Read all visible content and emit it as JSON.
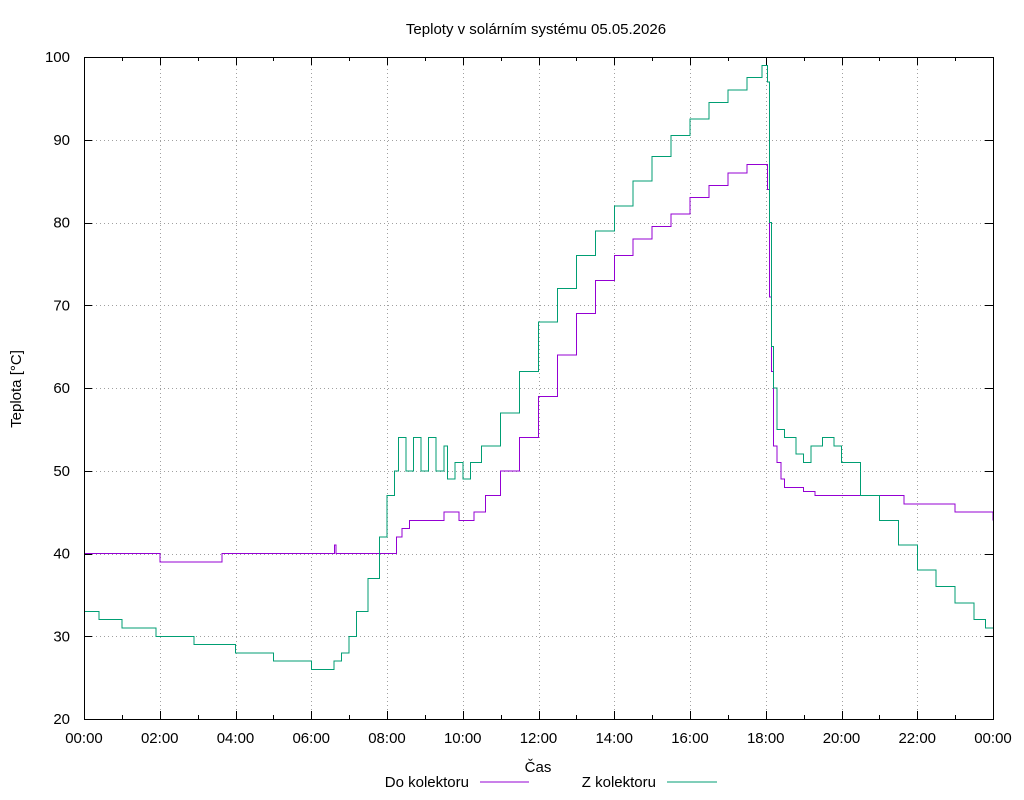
{
  "chart_data": {
    "type": "line",
    "title": "Teploty v solárním systému 05.05.2026",
    "xlabel": "Čas",
    "ylabel": "Teplota [°C]",
    "xlim": [
      0,
      24
    ],
    "ylim": [
      20,
      100
    ],
    "x_ticks": [
      "00:00",
      "02:00",
      "04:00",
      "06:00",
      "08:00",
      "10:00",
      "12:00",
      "14:00",
      "16:00",
      "18:00",
      "20:00",
      "22:00",
      "00:00"
    ],
    "y_ticks": [
      "20",
      "30",
      "40",
      "50",
      "60",
      "70",
      "80",
      "90",
      "100"
    ],
    "grid": true,
    "legend_position": "bottom",
    "series": [
      {
        "name": "Do kolektoru",
        "color": "#9400d3",
        "x": [
          0,
          1.95,
          2.0,
          2.05,
          3.6,
          3.65,
          6.6,
          6.62,
          6.65,
          8.2,
          8.25,
          8.4,
          8.6,
          9.3,
          9.5,
          9.7,
          9.9,
          10.05,
          10.3,
          10.6,
          11.0,
          11.5,
          12.0,
          12.5,
          13.0,
          13.5,
          14.0,
          14.5,
          15.0,
          15.5,
          16.0,
          16.5,
          17.0,
          17.5,
          18.0,
          18.05,
          18.1,
          18.15,
          18.2,
          18.3,
          18.4,
          18.5,
          18.7,
          19.0,
          19.3,
          20.0,
          21.0,
          21.6,
          21.65,
          22.5,
          22.9,
          23.0,
          23.8,
          24.0
        ],
        "y": [
          40,
          40,
          39,
          39,
          39,
          40,
          40,
          41,
          40,
          40,
          42,
          43,
          44,
          44,
          45,
          45,
          44,
          44,
          45,
          47,
          50,
          54,
          59,
          64,
          69,
          73,
          76,
          78,
          79.5,
          81,
          83,
          84.5,
          86,
          87,
          87,
          84,
          71,
          62,
          53,
          51,
          49,
          48,
          48,
          47.5,
          47,
          47,
          47,
          47,
          46,
          46,
          46,
          45,
          45,
          44
        ]
      },
      {
        "name": "Z kolektoru",
        "color": "#009e73",
        "x": [
          0,
          0.1,
          0.4,
          1.0,
          1.9,
          2.0,
          2.9,
          3.0,
          4.0,
          4.2,
          5.0,
          5.1,
          6.0,
          6.5,
          6.6,
          6.8,
          7.0,
          7.2,
          7.5,
          7.8,
          8.0,
          8.2,
          8.3,
          8.5,
          8.7,
          8.9,
          9.1,
          9.3,
          9.5,
          9.6,
          9.8,
          10.0,
          10.2,
          10.5,
          11.0,
          11.5,
          12.0,
          12.5,
          13.0,
          13.5,
          14.0,
          14.5,
          15.0,
          15.5,
          16.0,
          16.5,
          17.0,
          17.5,
          17.9,
          18.0,
          18.05,
          18.1,
          18.15,
          18.2,
          18.3,
          18.5,
          18.8,
          19.0,
          19.2,
          19.5,
          19.8,
          20.0,
          20.5,
          21.0,
          21.5,
          22.0,
          22.5,
          23.0,
          23.5,
          23.8,
          24.0
        ],
        "y": [
          33,
          33,
          32,
          31,
          30,
          30,
          29,
          29,
          28,
          28,
          27,
          27,
          26,
          26,
          27,
          28,
          30,
          33,
          37,
          42,
          47,
          50,
          54,
          50,
          54,
          50,
          54,
          50,
          53,
          49,
          51,
          49,
          51,
          53,
          57,
          62,
          68,
          72,
          76,
          79,
          82,
          85,
          88,
          90.5,
          92.5,
          94.5,
          96,
          97.5,
          99,
          99,
          97,
          80,
          65,
          60,
          55,
          54,
          52,
          51,
          53,
          54,
          53,
          51,
          47,
          44,
          41,
          38,
          36,
          34,
          32,
          31,
          31
        ]
      }
    ]
  }
}
